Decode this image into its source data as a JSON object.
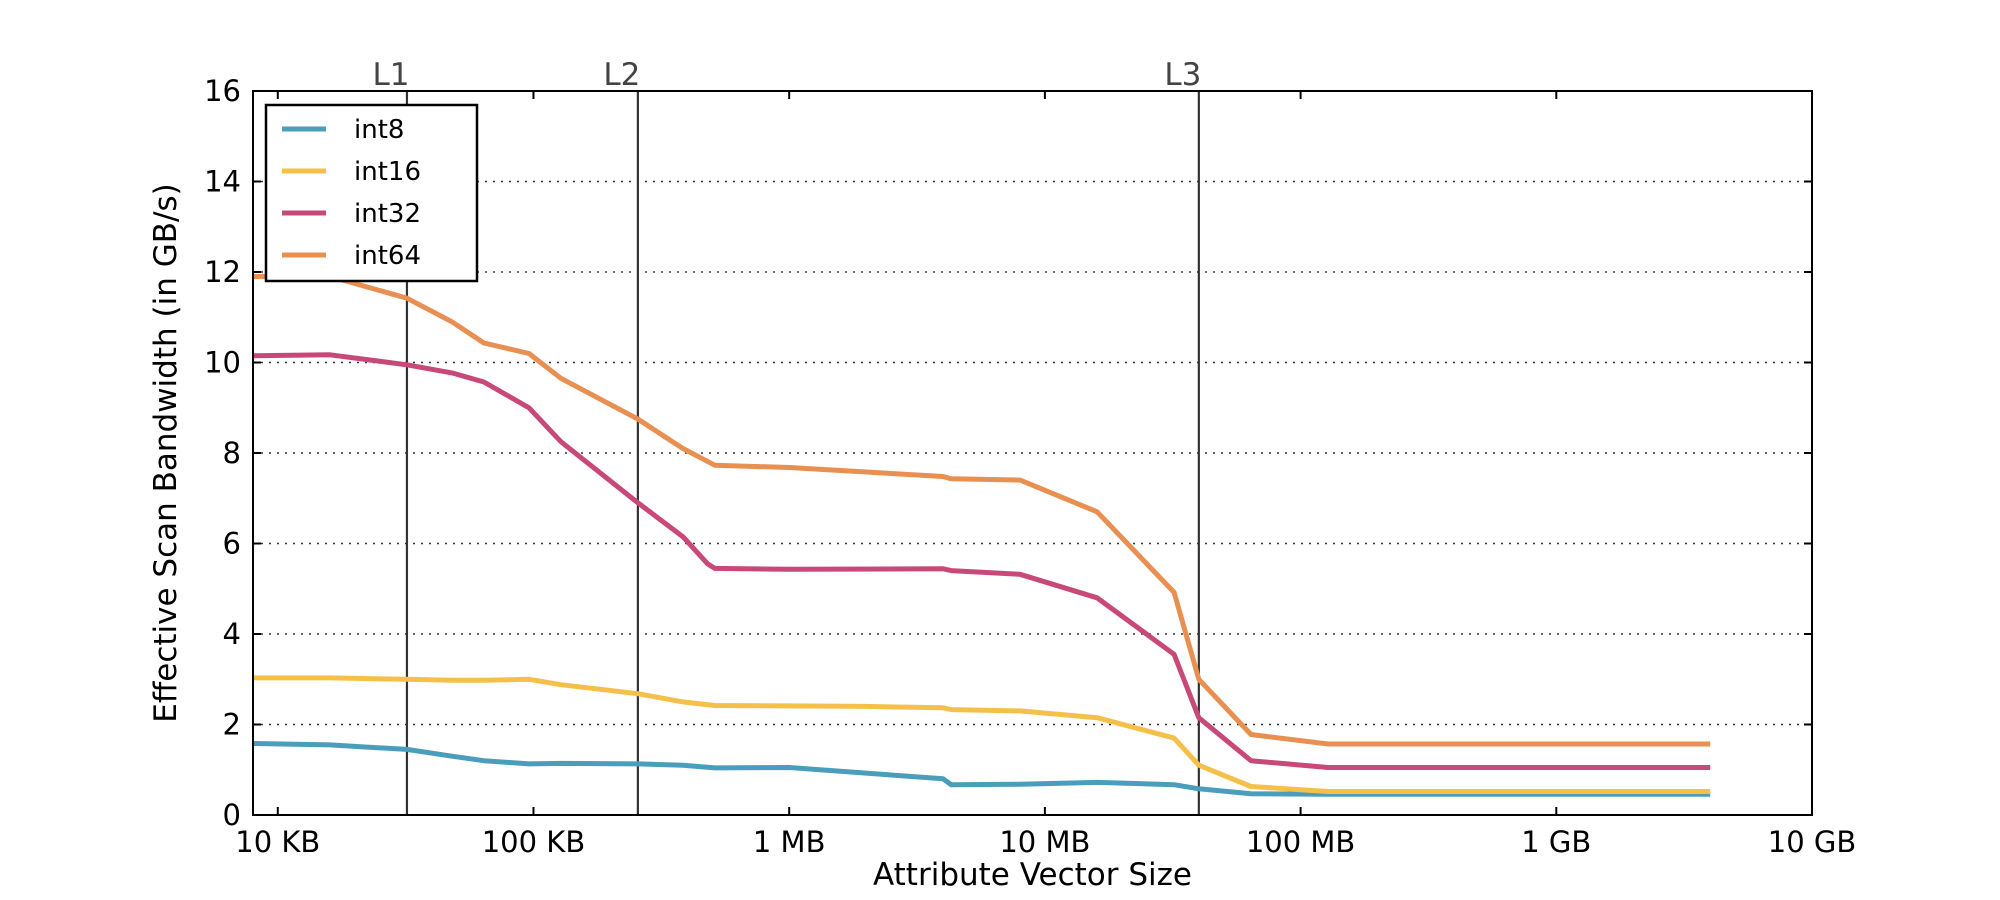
{
  "chart_data": {
    "type": "line",
    "xlabel": "Attribute Vector Size",
    "ylabel": "Effective Scan Bandwidth (in GB/s)",
    "x_scale": "log",
    "x_unit": "KB",
    "xlim_kb": [
      8,
      10000000
    ],
    "ylim": [
      0,
      16
    ],
    "yticks": [
      0,
      2,
      4,
      6,
      8,
      10,
      12,
      14,
      16
    ],
    "xticks": [
      {
        "value_kb": 10,
        "label": "10 KB"
      },
      {
        "value_kb": 100,
        "label": "100 KB"
      },
      {
        "value_kb": 1000,
        "label": "1 MB"
      },
      {
        "value_kb": 10000,
        "label": "10 MB"
      },
      {
        "value_kb": 100000,
        "label": "100 MB"
      },
      {
        "value_kb": 1000000,
        "label": "1 GB"
      },
      {
        "value_kb": 10000000,
        "label": "10 GB"
      }
    ],
    "grid": "horizontal-dotted",
    "legend_position": "top-left",
    "cache_boundaries": [
      {
        "label": "L1",
        "value_kb": 32
      },
      {
        "label": "L2",
        "value_kb": 256
      },
      {
        "label": "L3",
        "value_kb": 40000
      }
    ],
    "series": [
      {
        "name": "int8",
        "color": "#4a9ebb",
        "points": [
          [
            8,
            1.58
          ],
          [
            16,
            1.55
          ],
          [
            32,
            1.45
          ],
          [
            48,
            1.3
          ],
          [
            64,
            1.2
          ],
          [
            96,
            1.13
          ],
          [
            128,
            1.14
          ],
          [
            256,
            1.13
          ],
          [
            384,
            1.1
          ],
          [
            512,
            1.04
          ],
          [
            1000,
            1.05
          ],
          [
            4000,
            0.8
          ],
          [
            4300,
            0.67
          ],
          [
            8000,
            0.68
          ],
          [
            16000,
            0.72
          ],
          [
            32000,
            0.67
          ],
          [
            40000,
            0.58
          ],
          [
            64000,
            0.47
          ],
          [
            128000,
            0.46
          ],
          [
            4000000,
            0.46
          ]
        ]
      },
      {
        "name": "int16",
        "color": "#f4c04a",
        "points": [
          [
            8,
            3.03
          ],
          [
            16,
            3.03
          ],
          [
            32,
            3.0
          ],
          [
            48,
            2.98
          ],
          [
            64,
            2.98
          ],
          [
            96,
            3.0
          ],
          [
            128,
            2.88
          ],
          [
            256,
            2.68
          ],
          [
            384,
            2.5
          ],
          [
            512,
            2.42
          ],
          [
            1000,
            2.41
          ],
          [
            2000,
            2.4
          ],
          [
            4000,
            2.37
          ],
          [
            4300,
            2.33
          ],
          [
            8000,
            2.3
          ],
          [
            16000,
            2.15
          ],
          [
            32000,
            1.7
          ],
          [
            40000,
            1.1
          ],
          [
            64000,
            0.63
          ],
          [
            128000,
            0.52
          ],
          [
            4000000,
            0.52
          ]
        ]
      },
      {
        "name": "int32",
        "color": "#c8487a",
        "points": [
          [
            8,
            10.15
          ],
          [
            16,
            10.17
          ],
          [
            32,
            9.95
          ],
          [
            48,
            9.77
          ],
          [
            64,
            9.57
          ],
          [
            96,
            9.0
          ],
          [
            128,
            8.25
          ],
          [
            256,
            6.9
          ],
          [
            384,
            6.15
          ],
          [
            480,
            5.55
          ],
          [
            512,
            5.45
          ],
          [
            1000,
            5.43
          ],
          [
            4000,
            5.44
          ],
          [
            4300,
            5.4
          ],
          [
            8000,
            5.32
          ],
          [
            16000,
            4.8
          ],
          [
            32000,
            3.55
          ],
          [
            40000,
            2.15
          ],
          [
            64000,
            1.2
          ],
          [
            128000,
            1.05
          ],
          [
            4000000,
            1.05
          ]
        ]
      },
      {
        "name": "int64",
        "color": "#e88f52",
        "points": [
          [
            8,
            11.9
          ],
          [
            16,
            11.9
          ],
          [
            32,
            11.42
          ],
          [
            48,
            10.9
          ],
          [
            64,
            10.43
          ],
          [
            96,
            10.2
          ],
          [
            128,
            9.65
          ],
          [
            256,
            8.75
          ],
          [
            384,
            8.1
          ],
          [
            512,
            7.73
          ],
          [
            1000,
            7.68
          ],
          [
            4000,
            7.48
          ],
          [
            4300,
            7.43
          ],
          [
            8000,
            7.4
          ],
          [
            16000,
            6.7
          ],
          [
            32000,
            4.92
          ],
          [
            40000,
            3.0
          ],
          [
            64000,
            1.78
          ],
          [
            128000,
            1.57
          ],
          [
            4000000,
            1.57
          ]
        ]
      }
    ]
  }
}
